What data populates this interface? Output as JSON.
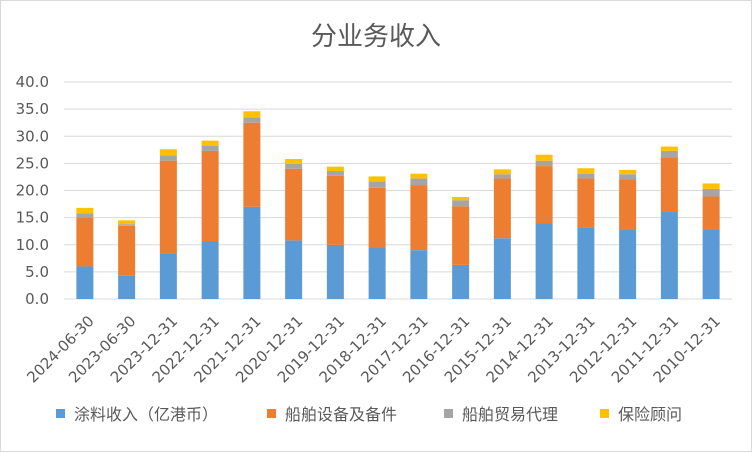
{
  "chart_data": {
    "type": "bar",
    "stacked": true,
    "title": "分业务收入",
    "ylim": [
      0,
      40
    ],
    "yticks": [
      "0.0",
      "5.0",
      "10.0",
      "15.0",
      "20.0",
      "25.0",
      "30.0",
      "35.0",
      "40.0"
    ],
    "grid": true,
    "legend_position": "bottom",
    "categories": [
      "2024-06-30",
      "2023-06-30",
      "2023-12-31",
      "2022-12-31",
      "2021-12-31",
      "2020-12-31",
      "2019-12-31",
      "2018-12-31",
      "2017-12-31",
      "2016-12-31",
      "2015-12-31",
      "2014-12-31",
      "2013-12-31",
      "2012-12-31",
      "2011-12-31",
      "2010-12-31"
    ],
    "series": [
      {
        "name": "涂料收入（亿港币）",
        "color": "#5b9bd5",
        "values": [
          6.0,
          4.3,
          8.3,
          10.6,
          17.0,
          10.8,
          10.0,
          9.5,
          9.0,
          6.3,
          11.2,
          14.0,
          13.2,
          12.8,
          16.2,
          12.8
        ]
      },
      {
        "name": "船舶设备及备件",
        "color": "#ed7d31",
        "values": [
          9.0,
          9.2,
          17.2,
          16.7,
          15.5,
          13.2,
          12.7,
          11.0,
          12.0,
          10.8,
          11.0,
          10.5,
          9.0,
          9.3,
          9.9,
          6.1
        ]
      },
      {
        "name": "船舶贸易代理",
        "color": "#a5a5a5",
        "values": [
          0.8,
          0.3,
          1.0,
          0.9,
          1.0,
          0.9,
          0.9,
          1.2,
          1.2,
          1.1,
          0.8,
          1.0,
          0.9,
          0.9,
          1.2,
          1.4
        ]
      },
      {
        "name": "保险顾问",
        "color": "#ffc000",
        "values": [
          1.0,
          0.7,
          1.1,
          1.0,
          1.1,
          0.9,
          0.8,
          0.9,
          0.9,
          0.6,
          0.9,
          1.1,
          1.0,
          0.8,
          0.8,
          1.0
        ]
      }
    ]
  }
}
